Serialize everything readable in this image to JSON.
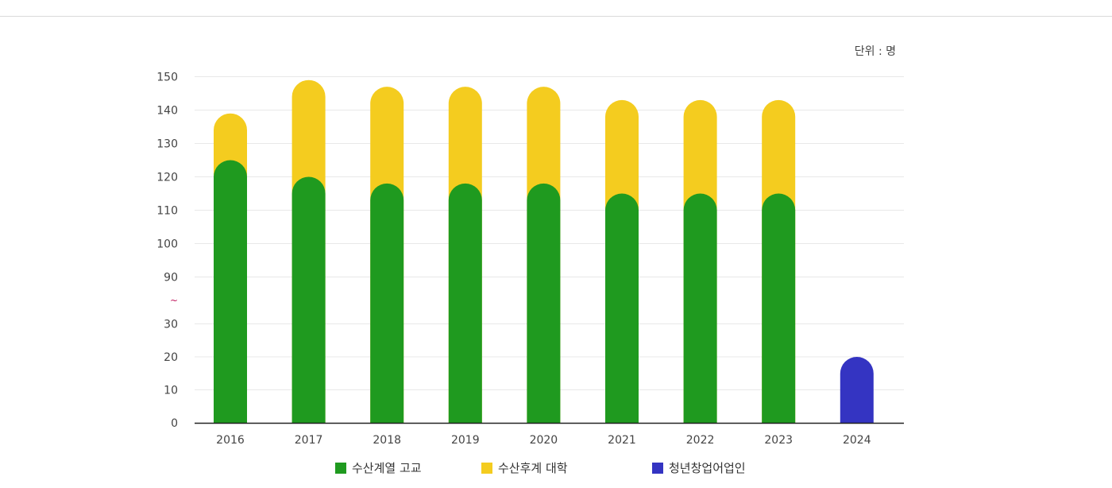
{
  "unit_label": "단위 : 명",
  "axis_break_label": "~",
  "chart_data": {
    "type": "bar",
    "stacked": true,
    "categories": [
      "2016",
      "2017",
      "2018",
      "2019",
      "2020",
      "2021",
      "2022",
      "2023",
      "2024"
    ],
    "series": [
      {
        "name": "수산계열 고교",
        "color": "#1f9a1f",
        "values": [
          125,
          120,
          118,
          118,
          118,
          115,
          115,
          115,
          null
        ]
      },
      {
        "name": "수산후계 대학",
        "color": "#f4cc1f",
        "values": [
          14,
          29,
          29,
          29,
          29,
          28,
          28,
          28,
          null
        ]
      },
      {
        "name": "청년창업어업인",
        "color": "#3434c2",
        "values": [
          null,
          null,
          null,
          null,
          null,
          null,
          null,
          null,
          20
        ]
      }
    ],
    "y_ticks_lower": [
      0,
      10,
      20,
      30
    ],
    "y_ticks_upper": [
      90,
      100,
      110,
      120,
      130,
      140,
      150
    ],
    "y_axis_break": [
      30,
      90
    ],
    "ylim": [
      0,
      150
    ],
    "grid": true,
    "legend_position": "bottom",
    "title": "",
    "xlabel": "",
    "ylabel": ""
  }
}
